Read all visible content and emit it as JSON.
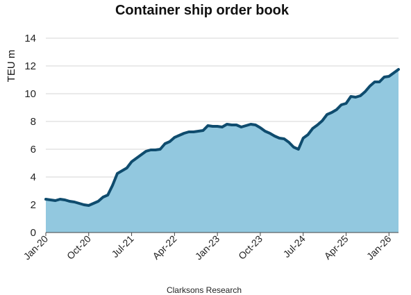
{
  "chart_data": {
    "type": "area",
    "title": "Container ship order book",
    "ylabel": "TEU m",
    "xlabel": "",
    "source": "Clarksons Research",
    "ylim": [
      0,
      14
    ],
    "yticks": [
      "0",
      "2",
      "4",
      "6",
      "8",
      "10",
      "12",
      "14"
    ],
    "xticks": [
      {
        "label": "Jan-20",
        "date": "2020-01"
      },
      {
        "label": "Oct-20",
        "date": "2020-10"
      },
      {
        "label": "Jul-21",
        "date": "2021-07"
      },
      {
        "label": "Apr-22",
        "date": "2022-04"
      },
      {
        "label": "Jan-23",
        "date": "2023-01"
      },
      {
        "label": "Oct-23",
        "date": "2023-10"
      },
      {
        "label": "Jul-24",
        "date": "2024-07"
      },
      {
        "label": "Apr-25",
        "date": "2025-04"
      },
      {
        "label": "Jan-26",
        "date": "2026-01"
      }
    ],
    "grid": true,
    "colors": {
      "fill": "#92c8df",
      "line": "#0f4c6e",
      "grid": "#d4d4d4"
    },
    "series": [
      {
        "x": [
          "2020-01",
          "2020-02",
          "2020-03",
          "2020-04",
          "2020-05",
          "2020-06",
          "2020-07",
          "2020-08",
          "2020-09",
          "2020-10",
          "2020-11",
          "2020-12",
          "2021-01",
          "2021-02",
          "2021-03",
          "2021-04",
          "2021-05",
          "2021-06",
          "2021-07",
          "2021-08",
          "2021-09",
          "2021-10",
          "2021-11",
          "2021-12",
          "2022-01",
          "2022-02",
          "2022-03",
          "2022-04",
          "2022-05",
          "2022-06",
          "2022-07",
          "2022-08",
          "2022-09",
          "2022-10",
          "2022-11",
          "2022-12",
          "2023-01",
          "2023-02",
          "2023-03",
          "2023-04",
          "2023-05",
          "2023-06",
          "2023-07",
          "2023-08",
          "2023-09",
          "2023-10",
          "2023-11",
          "2023-12",
          "2024-01",
          "2024-02",
          "2024-03",
          "2024-04",
          "2024-05",
          "2024-06",
          "2024-07",
          "2024-08",
          "2024-09",
          "2024-10",
          "2024-11",
          "2024-12",
          "2025-01",
          "2025-02",
          "2025-03",
          "2025-04",
          "2025-05",
          "2025-06",
          "2025-07",
          "2025-08",
          "2025-09",
          "2025-10",
          "2025-11",
          "2025-12",
          "2026-01",
          "2026-02",
          "2026-03"
        ],
        "values": [
          2.4,
          2.35,
          2.3,
          2.4,
          2.35,
          2.25,
          2.2,
          2.1,
          2.0,
          1.95,
          2.1,
          2.25,
          2.55,
          2.7,
          3.4,
          4.25,
          4.45,
          4.65,
          5.1,
          5.35,
          5.6,
          5.85,
          5.95,
          5.95,
          6.0,
          6.4,
          6.55,
          6.85,
          7.0,
          7.15,
          7.25,
          7.25,
          7.3,
          7.35,
          7.7,
          7.65,
          7.65,
          7.6,
          7.8,
          7.75,
          7.75,
          7.6,
          7.7,
          7.8,
          7.75,
          7.55,
          7.3,
          7.15,
          6.95,
          6.8,
          6.75,
          6.5,
          6.15,
          6.0,
          6.8,
          7.05,
          7.5,
          7.75,
          8.05,
          8.5,
          8.65,
          8.85,
          9.2,
          9.3,
          9.8,
          9.75,
          9.85,
          10.15,
          10.55,
          10.85,
          10.85,
          11.2,
          11.25,
          11.5,
          11.75
        ]
      }
    ]
  }
}
